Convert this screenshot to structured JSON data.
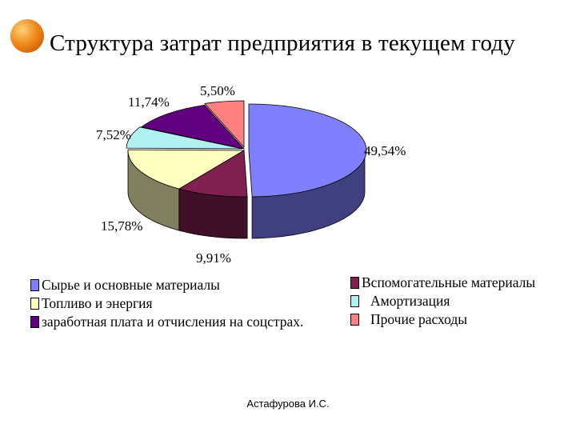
{
  "slide": {
    "title": "Структура затрат предприятия в текущем году",
    "footer": "Астафурова И.С."
  },
  "chart_data": {
    "type": "pie",
    "title": "Структура затрат предприятия в текущем году",
    "style": "3d-exploded",
    "series": [
      {
        "name": "Сырье и основные материалы",
        "value": 49.54,
        "label": "49,54%",
        "color": "#8080ff"
      },
      {
        "name": "Вспомогательные материалы",
        "value": 9.91,
        "label": "9,91%",
        "color": "#802050"
      },
      {
        "name": "Топливо и энергия",
        "value": 15.78,
        "label": "15,78%",
        "color": "#ffffc0"
      },
      {
        "name": "Амортизация",
        "value": 7.52,
        "label": "7,52%",
        "color": "#b0f0f0"
      },
      {
        "name": "заработная плата и отчисления на соцстрах.",
        "value": 11.74,
        "label": "11,74%",
        "color": "#600080"
      },
      {
        "name": "Прочие расходы",
        "value": 5.5,
        "label": "5,50%",
        "color": "#ff8080"
      }
    ],
    "legend_placement": "bottom"
  },
  "legend": {
    "left": [
      {
        "label": "Сырье и основные материалы",
        "color": "#8080ff"
      },
      {
        "label": "Топливо и энергия",
        "color": "#ffffc0"
      },
      {
        "label": "заработная плата и отчисления на соцстрах.",
        "color": "#600080"
      }
    ],
    "right": [
      {
        "label": "Вспомогательные материалы",
        "color": "#802050"
      },
      {
        "label": "Амортизация",
        "color": "#b0f0f0"
      },
      {
        "label": "Прочие расходы",
        "color": "#ff8080"
      }
    ]
  }
}
